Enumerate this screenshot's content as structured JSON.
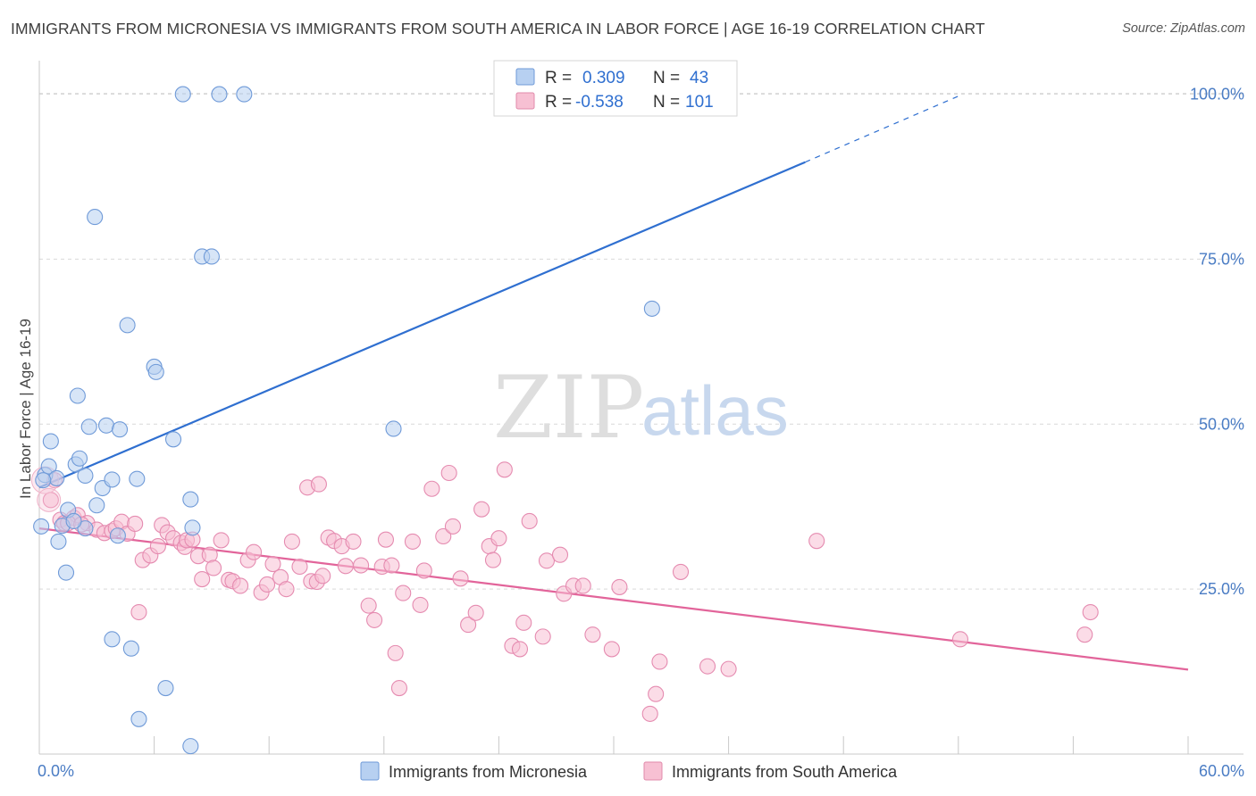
{
  "title": "IMMIGRANTS FROM MICRONESIA VS IMMIGRANTS FROM SOUTH AMERICA IN LABOR FORCE | AGE 16-19 CORRELATION CHART",
  "source": "Source: ZipAtlas.com",
  "colors": {
    "blue": "#2f6fd0",
    "blue_fill": "#b7d0f1",
    "pink": "#e2649a",
    "pink_fill": "#f7c0d3",
    "grid": "#d9d9d9"
  },
  "legend": {
    "rows": [
      {
        "r_label": "R =",
        "r_value": "0.309",
        "n_label": "N =",
        "n_value": "43"
      },
      {
        "r_label": "R =",
        "r_value": "-0.538",
        "n_label": "N =",
        "n_value": "101"
      }
    ]
  },
  "watermark": {
    "zip": "ZIP",
    "atlas": "atlas"
  },
  "chart_data": {
    "type": "scatter",
    "title": "IMMIGRANTS FROM MICRONESIA VS IMMIGRANTS FROM SOUTH AMERICA IN LABOR FORCE | AGE 16-19 CORRELATION CHART",
    "xlabel": "",
    "ylabel": "In Labor Force | Age 16-19",
    "xlim": [
      0,
      60
    ],
    "ylim": [
      0,
      104
    ],
    "x_tick_labels": [
      "0.0%",
      "60.0%"
    ],
    "y_ticks": [
      25,
      50,
      75,
      100
    ],
    "y_tick_labels": [
      "25.0%",
      "50.0%",
      "75.0%",
      "100.0%"
    ],
    "grid": true,
    "legend_position": "top-center",
    "series": [
      {
        "name": "Immigrants from Micronesia",
        "color": "#2f6fd0",
        "points": [
          [
            0.1,
            34.5
          ],
          [
            0.3,
            42.3
          ],
          [
            0.5,
            43.6
          ],
          [
            0.6,
            47.4
          ],
          [
            0.9,
            41.8
          ],
          [
            1.0,
            32.2
          ],
          [
            1.2,
            34.6
          ],
          [
            1.4,
            27.5
          ],
          [
            1.5,
            37.0
          ],
          [
            1.9,
            43.9
          ],
          [
            2.0,
            54.3
          ],
          [
            2.1,
            44.8
          ],
          [
            2.4,
            42.2
          ],
          [
            2.4,
            34.2
          ],
          [
            2.6,
            49.6
          ],
          [
            2.9,
            81.4
          ],
          [
            3.0,
            37.7
          ],
          [
            3.3,
            40.3
          ],
          [
            3.5,
            49.8
          ],
          [
            3.8,
            41.6
          ],
          [
            3.8,
            17.4
          ],
          [
            4.1,
            33.1
          ],
          [
            4.2,
            49.2
          ],
          [
            4.6,
            65.0
          ],
          [
            4.8,
            16.0
          ],
          [
            5.1,
            41.7
          ],
          [
            5.2,
            5.3
          ],
          [
            6.0,
            58.7
          ],
          [
            6.1,
            57.9
          ],
          [
            6.6,
            10.0
          ],
          [
            7.0,
            47.7
          ],
          [
            7.5,
            100.0
          ],
          [
            7.9,
            1.2
          ],
          [
            7.9,
            38.6
          ],
          [
            8.0,
            34.3
          ],
          [
            8.5,
            75.4
          ],
          [
            9.0,
            75.4
          ],
          [
            9.4,
            100.0
          ],
          [
            10.7,
            100.0
          ],
          [
            18.5,
            49.3
          ],
          [
            32.0,
            67.5
          ],
          [
            0.2,
            41.5
          ],
          [
            1.8,
            35.3
          ]
        ]
      },
      {
        "name": "Immigrants from South America",
        "color": "#e2649a",
        "points": [
          [
            0.6,
            38.5
          ],
          [
            0.8,
            41.5
          ],
          [
            1.1,
            35.5
          ],
          [
            1.3,
            35.0
          ],
          [
            1.8,
            35.8
          ],
          [
            2.0,
            36.2
          ],
          [
            2.5,
            35.0
          ],
          [
            3.0,
            34.0
          ],
          [
            3.4,
            33.5
          ],
          [
            3.8,
            33.8
          ],
          [
            4.0,
            34.2
          ],
          [
            4.3,
            35.2
          ],
          [
            4.6,
            33.4
          ],
          [
            5.0,
            34.9
          ],
          [
            5.2,
            21.5
          ],
          [
            5.4,
            29.4
          ],
          [
            5.8,
            30.1
          ],
          [
            6.2,
            31.5
          ],
          [
            6.4,
            34.7
          ],
          [
            6.7,
            33.6
          ],
          [
            7.0,
            32.7
          ],
          [
            7.4,
            32.0
          ],
          [
            7.6,
            31.4
          ],
          [
            7.7,
            32.4
          ],
          [
            8.0,
            32.5
          ],
          [
            8.3,
            30.0
          ],
          [
            8.5,
            26.5
          ],
          [
            8.9,
            30.2
          ],
          [
            9.1,
            28.2
          ],
          [
            9.5,
            32.4
          ],
          [
            9.9,
            26.4
          ],
          [
            10.1,
            26.2
          ],
          [
            10.5,
            25.5
          ],
          [
            10.9,
            29.4
          ],
          [
            11.2,
            30.6
          ],
          [
            11.6,
            24.5
          ],
          [
            11.9,
            25.7
          ],
          [
            12.2,
            28.8
          ],
          [
            12.6,
            26.8
          ],
          [
            12.9,
            25.0
          ],
          [
            13.2,
            32.2
          ],
          [
            13.6,
            28.4
          ],
          [
            14.0,
            40.4
          ],
          [
            14.2,
            26.2
          ],
          [
            14.5,
            26.1
          ],
          [
            14.6,
            40.9
          ],
          [
            14.8,
            27.0
          ],
          [
            15.1,
            32.8
          ],
          [
            15.4,
            32.3
          ],
          [
            15.8,
            31.5
          ],
          [
            16.0,
            28.5
          ],
          [
            16.4,
            32.2
          ],
          [
            16.8,
            28.6
          ],
          [
            17.2,
            22.5
          ],
          [
            17.5,
            20.3
          ],
          [
            17.9,
            28.4
          ],
          [
            18.1,
            32.5
          ],
          [
            18.4,
            28.6
          ],
          [
            18.6,
            15.3
          ],
          [
            18.8,
            10.0
          ],
          [
            19.0,
            24.4
          ],
          [
            19.5,
            32.2
          ],
          [
            19.9,
            22.6
          ],
          [
            20.1,
            27.8
          ],
          [
            20.5,
            40.2
          ],
          [
            21.1,
            33.0
          ],
          [
            21.4,
            42.6
          ],
          [
            21.6,
            34.5
          ],
          [
            22.0,
            26.6
          ],
          [
            22.4,
            19.6
          ],
          [
            22.8,
            21.4
          ],
          [
            23.1,
            37.1
          ],
          [
            23.5,
            31.5
          ],
          [
            23.7,
            29.4
          ],
          [
            24.0,
            32.7
          ],
          [
            24.3,
            43.1
          ],
          [
            24.7,
            16.4
          ],
          [
            25.1,
            15.9
          ],
          [
            25.3,
            19.9
          ],
          [
            25.6,
            35.3
          ],
          [
            26.3,
            17.8
          ],
          [
            26.5,
            29.3
          ],
          [
            27.2,
            30.2
          ],
          [
            27.4,
            24.3
          ],
          [
            27.9,
            25.5
          ],
          [
            28.4,
            25.5
          ],
          [
            28.9,
            18.1
          ],
          [
            29.9,
            15.9
          ],
          [
            30.3,
            25.3
          ],
          [
            31.9,
            6.1
          ],
          [
            32.2,
            9.1
          ],
          [
            32.4,
            14.0
          ],
          [
            33.5,
            27.6
          ],
          [
            34.9,
            13.3
          ],
          [
            36.0,
            12.9
          ],
          [
            40.6,
            32.3
          ],
          [
            48.1,
            17.4
          ],
          [
            54.6,
            18.1
          ],
          [
            54.9,
            21.5
          ],
          [
            1.5,
            35.0
          ],
          [
            2.2,
            34.8
          ]
        ]
      }
    ],
    "trendlines": [
      {
        "series": "Immigrants from Micronesia",
        "from": [
          0,
          40.4
        ],
        "to": [
          40,
          89.7
        ],
        "dashed_to": [
          48,
          99.7
        ]
      },
      {
        "series": "Immigrants from South America",
        "from": [
          0,
          34.2
        ],
        "to": [
          60,
          12.8
        ]
      }
    ]
  }
}
